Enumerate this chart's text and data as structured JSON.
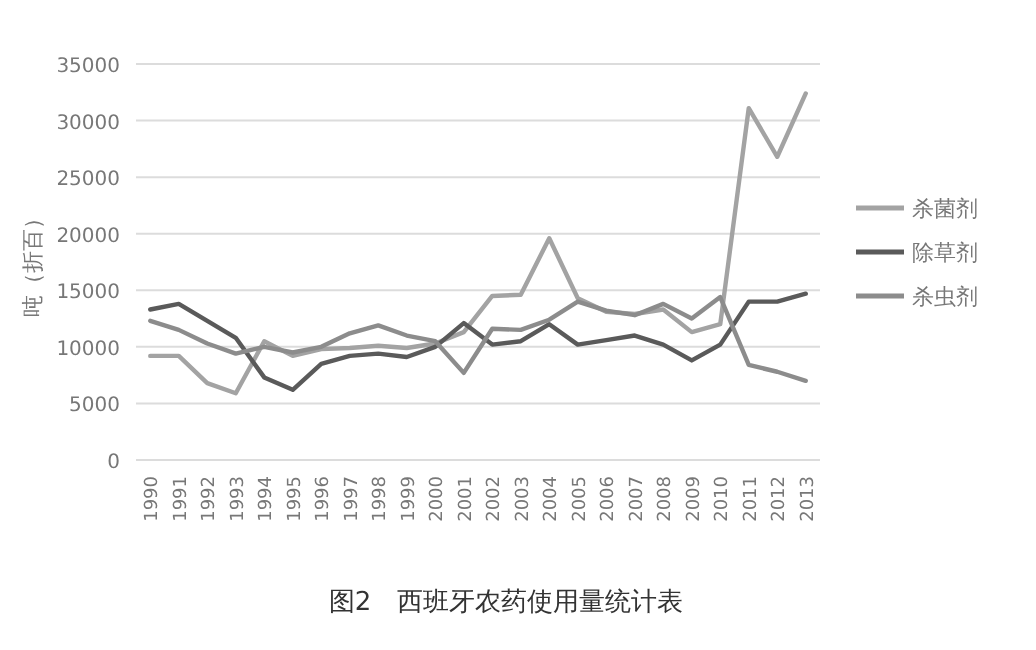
{
  "chart_data": {
    "type": "line",
    "title": "图2　西班牙农药使用量统计表",
    "ylabel": "吨（折百）",
    "categories": [
      "1990",
      "1991",
      "1992",
      "1993",
      "1994",
      "1995",
      "1996",
      "1997",
      "1998",
      "1999",
      "2000",
      "2001",
      "2002",
      "2003",
      "2004",
      "2005",
      "2006",
      "2007",
      "2008",
      "2009",
      "2010",
      "2011",
      "2012",
      "2013"
    ],
    "series": [
      {
        "name": "杀菌剂",
        "color": "#a3a3a3",
        "values": [
          9200,
          9200,
          6800,
          5900,
          10500,
          9200,
          9800,
          9900,
          10100,
          9900,
          10300,
          11300,
          14500,
          14600,
          19600,
          14300,
          13100,
          12900,
          13300,
          11300,
          12000,
          31100,
          26800,
          32400
        ]
      },
      {
        "name": "除草剂",
        "color": "#5a5a5a",
        "values": [
          13300,
          13800,
          12300,
          10800,
          7300,
          6200,
          8500,
          9200,
          9400,
          9100,
          10000,
          12100,
          10200,
          10500,
          12000,
          10200,
          10600,
          11000,
          10200,
          8800,
          10200,
          14000,
          14000,
          14700
        ]
      },
      {
        "name": "杀虫剂",
        "color": "#8c8c8c",
        "values": [
          12300,
          11500,
          10300,
          9400,
          10000,
          9500,
          10000,
          11200,
          11900,
          11000,
          10500,
          7700,
          11600,
          11500,
          12400,
          14000,
          13200,
          12800,
          13800,
          12500,
          14400,
          8400,
          7800,
          7000
        ]
      }
    ],
    "ylim": [
      0,
      35000
    ],
    "yticks": [
      0,
      5000,
      10000,
      15000,
      20000,
      25000,
      30000,
      35000
    ],
    "grid": "y",
    "legend": "right"
  }
}
